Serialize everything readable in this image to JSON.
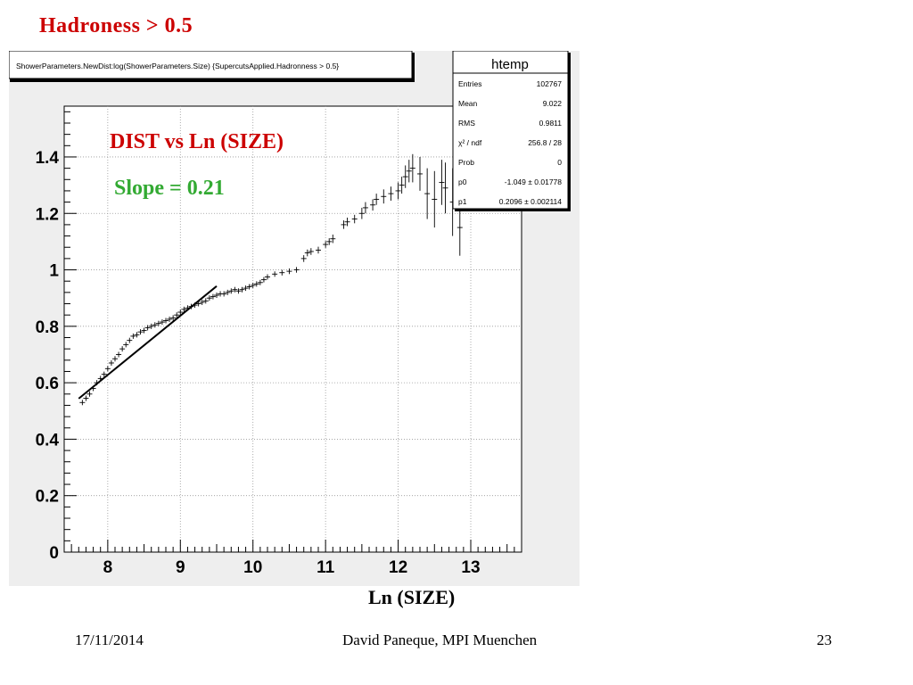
{
  "slide": {
    "title": "Hadroness > 0.5",
    "x_axis_title": "Ln (SIZE)",
    "footer": {
      "date": "17/11/2014",
      "author": "David Paneque, MPI Muenchen",
      "page": "23"
    }
  },
  "colors": {
    "title": "#cc0000",
    "annotation_main": "#cc0000",
    "annotation_slope": "#33aa33",
    "canvas_bg": "#eeeeee",
    "frame_bg": "#ffffff"
  },
  "canvas": {
    "histogram_title": "ShowerParameters.NewDist:log(ShowerParameters.Size) {SupercutsApplied.Hadronness > 0.5}",
    "annotation_main": "DIST vs Ln (SIZE)",
    "annotation_slope": "Slope = 0.21"
  },
  "stats_box": {
    "title": "htemp",
    "rows": [
      {
        "label": "Entries",
        "value": "102767"
      },
      {
        "label": "Mean",
        "value": "9.022"
      },
      {
        "label": "RMS",
        "value": "0.9811"
      },
      {
        "label": "χ² / ndf",
        "value": "256.8 / 28"
      },
      {
        "label": "Prob",
        "value": "0"
      },
      {
        "label": "p0",
        "value": "-1.049 ± 0.01778"
      },
      {
        "label": "p1",
        "value": "0.2096 ± 0.002114"
      }
    ]
  },
  "chart_data": {
    "type": "scatter",
    "title": "ShowerParameters.NewDist:log(ShowerParameters.Size) {SupercutsApplied.Hadronness > 0.5}",
    "xlabel": "Ln (SIZE)",
    "ylabel": "",
    "xlim": [
      7.4,
      13.7
    ],
    "ylim": [
      0,
      1.58
    ],
    "x_ticks": [
      8,
      9,
      10,
      11,
      12,
      13
    ],
    "y_ticks": [
      0,
      0.2,
      0.4,
      0.6,
      0.8,
      1,
      1.2,
      1.4
    ],
    "y_tick_labels": [
      "0",
      "0.2",
      "0.4",
      "0.6",
      "0.8",
      "1",
      "1.2",
      "1.4"
    ],
    "grid": true,
    "series": [
      {
        "points": [
          [
            7.65,
            0.53,
            0.005
          ],
          [
            7.7,
            0.545,
            0.005
          ],
          [
            7.75,
            0.56,
            0.005
          ],
          [
            7.8,
            0.58,
            0.005
          ],
          [
            7.85,
            0.6,
            0.005
          ],
          [
            7.9,
            0.615,
            0.005
          ],
          [
            7.95,
            0.63,
            0.005
          ],
          [
            8.0,
            0.65,
            0.005
          ],
          [
            8.05,
            0.67,
            0.005
          ],
          [
            8.1,
            0.685,
            0.005
          ],
          [
            8.15,
            0.7,
            0.005
          ],
          [
            8.2,
            0.72,
            0.005
          ],
          [
            8.25,
            0.735,
            0.005
          ],
          [
            8.3,
            0.75,
            0.005
          ],
          [
            8.35,
            0.765,
            0.005
          ],
          [
            8.4,
            0.77,
            0.005
          ],
          [
            8.45,
            0.78,
            0.005
          ],
          [
            8.5,
            0.785,
            0.005
          ],
          [
            8.55,
            0.795,
            0.005
          ],
          [
            8.6,
            0.8,
            0.005
          ],
          [
            8.65,
            0.805,
            0.005
          ],
          [
            8.7,
            0.81,
            0.005
          ],
          [
            8.75,
            0.815,
            0.005
          ],
          [
            8.8,
            0.82,
            0.005
          ],
          [
            8.85,
            0.825,
            0.005
          ],
          [
            8.9,
            0.83,
            0.005
          ],
          [
            8.95,
            0.84,
            0.006
          ],
          [
            9.0,
            0.85,
            0.006
          ],
          [
            9.05,
            0.86,
            0.006
          ],
          [
            9.1,
            0.865,
            0.006
          ],
          [
            9.15,
            0.87,
            0.006
          ],
          [
            9.2,
            0.875,
            0.006
          ],
          [
            9.25,
            0.88,
            0.006
          ],
          [
            9.3,
            0.885,
            0.006
          ],
          [
            9.35,
            0.89,
            0.006
          ],
          [
            9.4,
            0.9,
            0.006
          ],
          [
            9.45,
            0.905,
            0.006
          ],
          [
            9.5,
            0.91,
            0.007
          ],
          [
            9.55,
            0.915,
            0.007
          ],
          [
            9.6,
            0.915,
            0.007
          ],
          [
            9.65,
            0.92,
            0.007
          ],
          [
            9.7,
            0.925,
            0.007
          ],
          [
            9.75,
            0.93,
            0.007
          ],
          [
            9.8,
            0.925,
            0.007
          ],
          [
            9.85,
            0.93,
            0.008
          ],
          [
            9.9,
            0.935,
            0.008
          ],
          [
            9.95,
            0.94,
            0.008
          ],
          [
            10.0,
            0.945,
            0.008
          ],
          [
            10.05,
            0.95,
            0.008
          ],
          [
            10.1,
            0.955,
            0.009
          ],
          [
            10.15,
            0.965,
            0.009
          ],
          [
            10.2,
            0.975,
            0.009
          ],
          [
            10.3,
            0.985,
            0.009
          ],
          [
            10.4,
            0.99,
            0.01
          ],
          [
            10.5,
            0.995,
            0.01
          ],
          [
            10.6,
            1.0,
            0.01
          ],
          [
            10.7,
            1.04,
            0.012
          ],
          [
            10.75,
            1.06,
            0.012
          ],
          [
            10.8,
            1.065,
            0.012
          ],
          [
            10.9,
            1.07,
            0.012
          ],
          [
            11.0,
            1.09,
            0.012
          ],
          [
            11.05,
            1.1,
            0.012
          ],
          [
            11.1,
            1.11,
            0.015
          ],
          [
            11.25,
            1.16,
            0.015
          ],
          [
            11.3,
            1.17,
            0.015
          ],
          [
            11.4,
            1.18,
            0.015
          ],
          [
            11.5,
            1.2,
            0.02
          ],
          [
            11.55,
            1.22,
            0.02
          ],
          [
            11.65,
            1.23,
            0.02
          ],
          [
            11.7,
            1.25,
            0.02
          ],
          [
            11.8,
            1.26,
            0.025
          ],
          [
            11.9,
            1.27,
            0.025
          ],
          [
            12.0,
            1.28,
            0.03
          ],
          [
            12.05,
            1.3,
            0.03
          ],
          [
            12.1,
            1.33,
            0.04
          ],
          [
            12.15,
            1.35,
            0.04
          ],
          [
            12.2,
            1.36,
            0.05
          ],
          [
            12.3,
            1.34,
            0.06
          ],
          [
            12.4,
            1.27,
            0.09
          ],
          [
            12.5,
            1.25,
            0.1
          ],
          [
            12.6,
            1.31,
            0.08
          ],
          [
            12.65,
            1.29,
            0.09
          ],
          [
            12.75,
            1.24,
            0.12
          ],
          [
            12.85,
            1.15,
            0.1
          ]
        ]
      }
    ],
    "fit_line": {
      "p0": -1.049,
      "p1": 0.2096,
      "x_range": [
        7.6,
        9.5
      ]
    }
  }
}
